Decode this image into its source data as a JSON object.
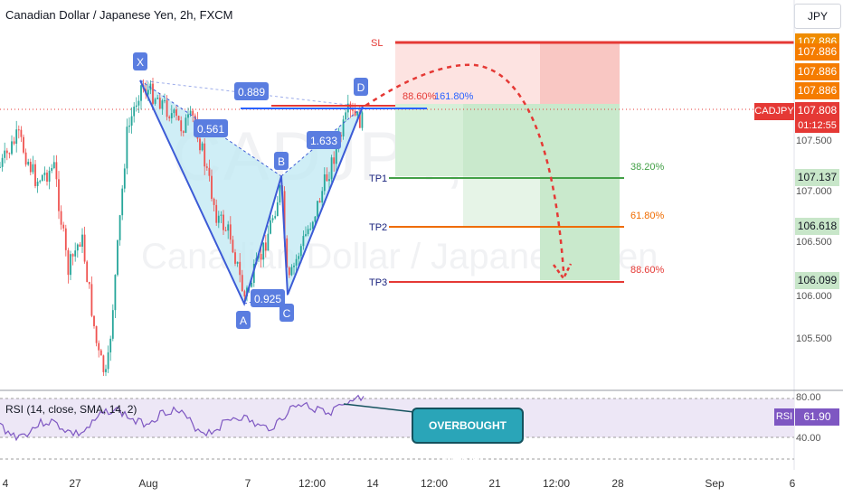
{
  "header": {
    "title": "Canadian Dollar / Japanese Yen, 2h, FXCM",
    "currency": "JPY"
  },
  "watermark": {
    "symbol": "CADJPY, 2h",
    "name": "Canadian Dollar / Japanese Yen"
  },
  "price_tags": {
    "sl_top": "107.886",
    "sl_mid": "107.886",
    "sl_low": "107.886",
    "symbol": "CADJPY",
    "price": "107.808",
    "countdown": "01:12:55",
    "tp1": "107.137",
    "tp2": "106.618",
    "tp3": "106.099"
  },
  "price_axis": {
    "l1": "107.500",
    "l2": "107.000",
    "l3": "106.500",
    "l4": "106.000",
    "l5": "105.500"
  },
  "rsi": {
    "label": "RSI (14, close, SMA, 14, 2)",
    "value": "61.90",
    "tag": "RSI",
    "upper": "80.00",
    "lower": "40.00"
  },
  "annotation": {
    "text": "OVERBOUGHT MARKET"
  },
  "pattern": {
    "points": {
      "x": "X",
      "a": "A",
      "b": "B",
      "c": "C",
      "d": "D"
    },
    "ratios": {
      "xb": "0.561",
      "ac": "0.925",
      "bd": "1.633",
      "xd": "0.889"
    },
    "d_labels": {
      "r1": "88.60%",
      "r2": "161.80%"
    }
  },
  "targets": {
    "sl": "SL",
    "tp1": "TP1",
    "tp2": "TP2",
    "tp3": "TP3",
    "tp1_pct": "38.20%",
    "tp2_pct": "61.80%",
    "tp3_pct": "88.60%"
  },
  "colors": {
    "sl": "#e53935",
    "tp1": "#43a047",
    "tp2": "#ef6c00",
    "tp3": "#e53935",
    "pattern_fill": "#bfe8f3",
    "pattern_line": "#3c5bd6",
    "up": "#26a69a",
    "down": "#ef5350",
    "rsi_line": "#7e57c2",
    "note_bg": "#2aa5b8",
    "label": "#5a7de0"
  },
  "chart_data": {
    "type": "candlestick",
    "timeframe": "2h",
    "x_tick_labels": [
      "4",
      "27",
      "Aug",
      "7",
      "12:00",
      "14",
      "12:00",
      "21",
      "12:00",
      "28",
      "Sep",
      "6"
    ],
    "price_axis_ticks": [
      107.5,
      107.0,
      106.5,
      106.0,
      105.5
    ],
    "pattern": {
      "type": "harmonic XABCD",
      "X": 107.65,
      "A": 105.95,
      "B": 107.15,
      "C": 105.98,
      "D": 107.8,
      "XB": 0.561,
      "AC": 0.925,
      "BD": 1.633,
      "XD": 0.889
    },
    "trade": {
      "stop_loss": 107.886,
      "entry": 107.808,
      "tp1": 107.137,
      "tp2": 106.618,
      "tp3": 106.099
    },
    "fib_levels": {
      "tp1": "38.20%",
      "tp2": "61.80%",
      "tp3": "88.60%"
    },
    "rsi": {
      "period": 14,
      "current": 61.9,
      "bands": [
        80,
        40
      ]
    }
  }
}
